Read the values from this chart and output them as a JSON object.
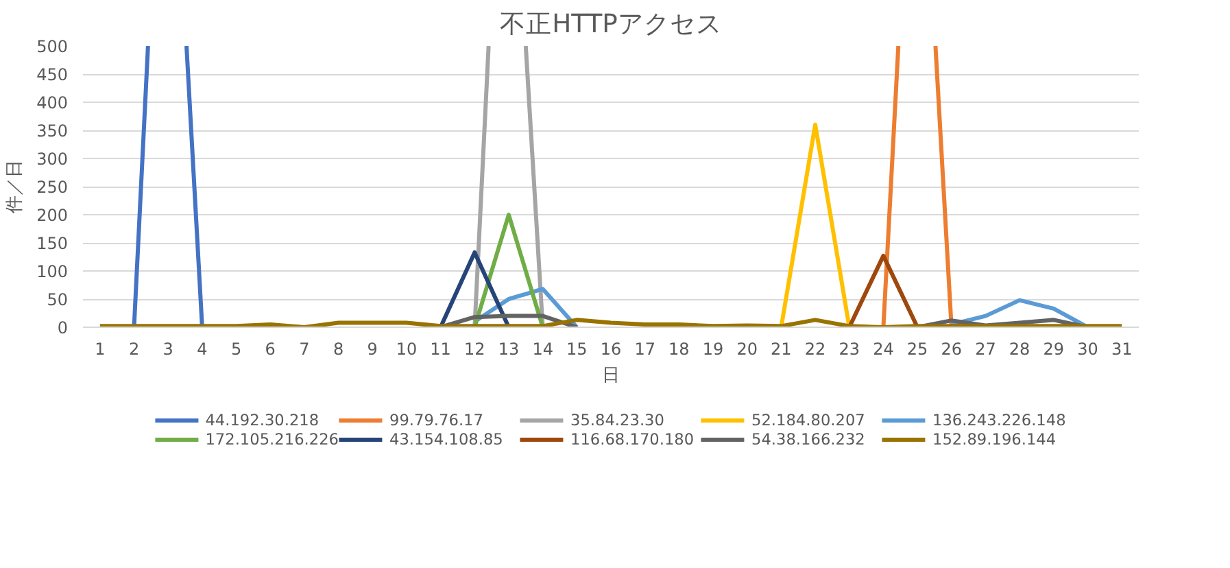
{
  "chart_data": {
    "type": "line",
    "title": "不正HTTPアクセス",
    "xlabel": "日",
    "ylabel": "件／日",
    "x": [
      1,
      2,
      3,
      4,
      5,
      6,
      7,
      8,
      9,
      10,
      11,
      12,
      13,
      14,
      15,
      16,
      17,
      18,
      19,
      20,
      21,
      22,
      23,
      24,
      25,
      26,
      27,
      28,
      29,
      30,
      31
    ],
    "xlim": [
      0.5,
      31.5
    ],
    "xticks": [
      1,
      2,
      3,
      4,
      5,
      6,
      7,
      8,
      9,
      10,
      11,
      12,
      13,
      14,
      15,
      16,
      17,
      18,
      19,
      20,
      21,
      22,
      23,
      24,
      25,
      26,
      27,
      28,
      29,
      30,
      31
    ],
    "ylim": [
      0,
      500
    ],
    "yticks": [
      0,
      50,
      100,
      150,
      200,
      250,
      300,
      350,
      400,
      450,
      500
    ],
    "grid": "y",
    "legend": "bottom",
    "line_style": "solid",
    "marker": "none",
    "series": [
      {
        "name": "44.192.30.218",
        "color": "#4472c4",
        "x": [
          2,
          2.41,
          3,
          3.54,
          4
        ],
        "values": [
          0,
          500,
          null,
          500,
          0
        ]
      },
      {
        "name": "99.79.76.17",
        "color": "#ed7d31",
        "x": [
          24,
          24.44,
          25,
          25.53,
          26
        ],
        "values": [
          0,
          500,
          null,
          500,
          0
        ]
      },
      {
        "name": "35.84.23.30",
        "color": "#a5a5a5",
        "x": [
          12,
          12.41,
          13,
          13.5,
          14
        ],
        "values": [
          0,
          500,
          null,
          500,
          0
        ]
      },
      {
        "name": "52.184.80.207",
        "color": "#ffc000",
        "x": [
          21,
          22,
          23
        ],
        "values": [
          0,
          360,
          0
        ]
      },
      {
        "name": "136.243.226.148",
        "color": "#5b9bd5",
        "x": [
          12,
          13,
          14,
          15,
          20,
          26,
          27,
          28,
          29,
          30
        ],
        "values": [
          10,
          50,
          68,
          0,
          null,
          5,
          20,
          48,
          33,
          0
        ]
      },
      {
        "name": "172.105.216.226",
        "color": "#70ad47",
        "x": [
          12,
          13,
          14
        ],
        "values": [
          0,
          200,
          0
        ]
      },
      {
        "name": "43.154.108.85",
        "color": "#264478",
        "x": [
          11,
          12,
          13
        ],
        "values": [
          0,
          133,
          0
        ]
      },
      {
        "name": "116.68.170.180",
        "color": "#9e480e",
        "x": [
          23,
          24,
          25
        ],
        "values": [
          0,
          127,
          0
        ]
      },
      {
        "name": "54.38.166.232",
        "color": "#636363",
        "x": [
          11,
          12,
          13,
          14,
          15,
          20,
          25,
          26,
          27,
          28,
          29,
          30
        ],
        "values": [
          0,
          18,
          20,
          20,
          0,
          null,
          0,
          12,
          3,
          8,
          13,
          0
        ]
      },
      {
        "name": "152.89.196.144",
        "color": "#997300",
        "values": [
          2,
          2,
          2,
          2,
          2,
          5,
          0,
          8,
          8,
          8,
          2,
          2,
          2,
          2,
          13,
          8,
          5,
          5,
          2,
          3,
          2,
          13,
          2,
          0,
          2,
          2,
          2,
          2,
          2,
          2,
          2
        ]
      }
    ]
  }
}
